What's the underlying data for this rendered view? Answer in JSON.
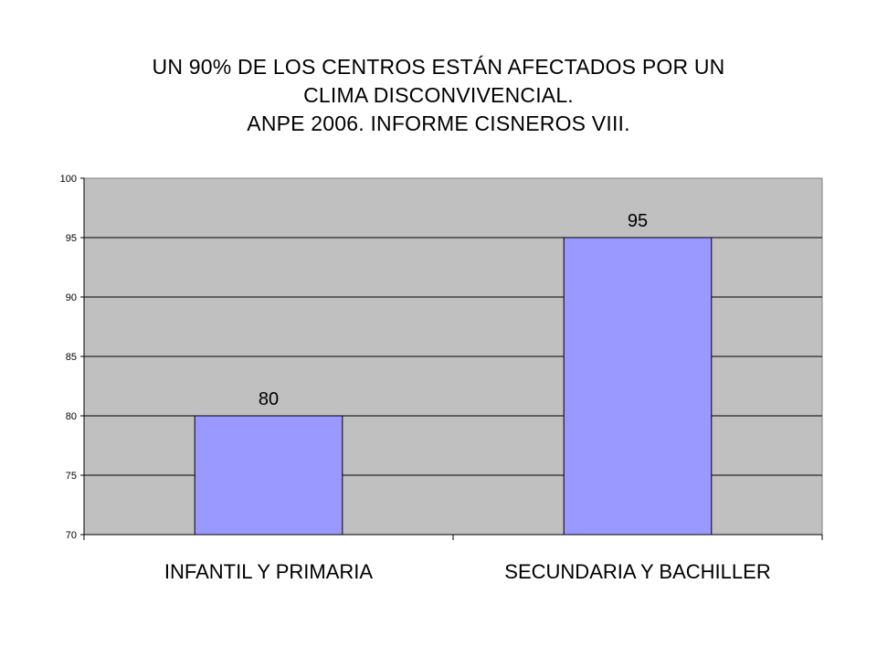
{
  "chart_data": {
    "type": "bar",
    "title": [
      "UN 90% DE LOS CENTROS ESTÁN AFECTADOS POR UN",
      "CLIMA DISCONVIVENCIAL.",
      "ANPE 2006. INFORME CISNEROS VIII."
    ],
    "categories": [
      "INFANTIL Y PRIMARIA",
      "SECUNDARIA Y BACHILLER"
    ],
    "values": [
      80,
      95
    ],
    "data_labels": [
      "80",
      "95"
    ],
    "ylim": [
      70,
      100
    ],
    "yticks": [
      70,
      75,
      80,
      85,
      90,
      95,
      100
    ],
    "grid": true,
    "legend": "none",
    "colors": {
      "bar_fill": "#9999ff",
      "bar_stroke": "#000000",
      "plot_background": "#c0c0c0",
      "gridline": "#000000"
    }
  }
}
